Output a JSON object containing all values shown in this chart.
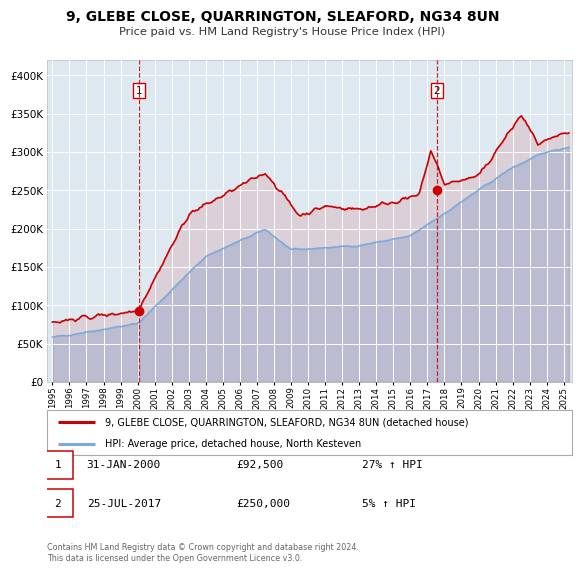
{
  "title": "9, GLEBE CLOSE, QUARRINGTON, SLEAFORD, NG34 8UN",
  "subtitle": "Price paid vs. HM Land Registry's House Price Index (HPI)",
  "legend_line1": "9, GLEBE CLOSE, QUARRINGTON, SLEAFORD, NG34 8UN (detached house)",
  "legend_line2": "HPI: Average price, detached house, North Kesteven",
  "transaction1_date": "31-JAN-2000",
  "transaction1_price": "£92,500",
  "transaction1_hpi": "27% ↑ HPI",
  "transaction1_year": 2000.08,
  "transaction1_price_val": 92500,
  "transaction2_date": "25-JUL-2017",
  "transaction2_price": "£250,000",
  "transaction2_hpi": "5% ↑ HPI",
  "transaction2_year": 2017.56,
  "transaction2_price_val": 250000,
  "price_color": "#cc0000",
  "hpi_color": "#7aaadd",
  "background_color": "#ffffff",
  "plot_bg_color": "#dde8f0",
  "grid_color": "#ffffff",
  "footnote": "Contains HM Land Registry data © Crown copyright and database right 2024.\nThis data is licensed under the Open Government Licence v3.0.",
  "ylim": [
    0,
    420000
  ],
  "yticks": [
    0,
    50000,
    100000,
    150000,
    200000,
    250000,
    300000,
    350000,
    400000
  ],
  "xlim_start": 1994.7,
  "xlim_end": 2025.5
}
